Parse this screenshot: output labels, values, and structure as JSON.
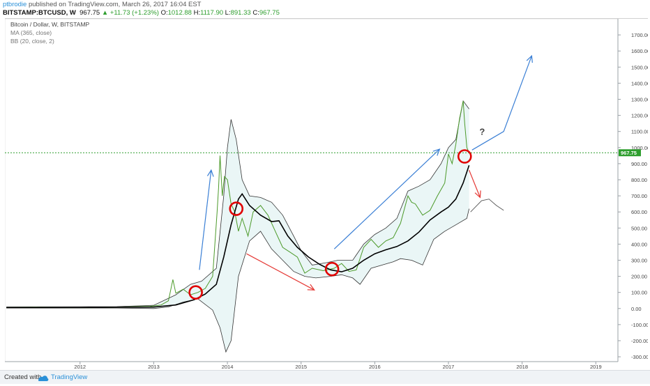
{
  "header": {
    "author": "ptbrodie",
    "published": " published on TradingView.com, March 26, 2017 16:04 EST",
    "symbol": "BITSTAMP:BTCUSD, W",
    "last": "967.75",
    "change": "▲ +11.73 (+1.23%)",
    "o_label": "O:",
    "o_value": "1012.88",
    "h_label": "H:",
    "h_value": "1117.90",
    "l_label": "L:",
    "l_value": "891.33",
    "c_label": "C:",
    "c_value": "967.75"
  },
  "legend": {
    "title": "Bitcoin / Dollar, W, BITSTAMP",
    "ma": "MA (365, close)",
    "bb": "BB (20, close, 2)"
  },
  "footer": {
    "created": "Created with",
    "brand": "TradingView"
  },
  "colors": {
    "price": "#4c9a2a",
    "ma": "#000000",
    "bands": "#333333",
    "band_fill": "#eaf6f6",
    "hline": "#2e9e2e",
    "arrow_up": "#3a7fd5",
    "arrow_down": "#e53935",
    "circle": "#e00000",
    "tag_bg": "#2e9e2e"
  },
  "annotations": {
    "question": "?"
  },
  "chart_data": {
    "type": "line",
    "title": "Bitcoin / Dollar, W, BITSTAMP",
    "x_ticks": [
      "2012",
      "2013",
      "2014",
      "2015",
      "2016",
      "2017",
      "2018",
      "2019"
    ],
    "y_ticks": [
      -300,
      -200,
      -100,
      0,
      100,
      200,
      300,
      400,
      500,
      600,
      700,
      800,
      900,
      1000,
      1100,
      1200,
      1300,
      1400,
      1500,
      1600,
      1700
    ],
    "ylim": [
      -330,
      1800
    ],
    "xlim": [
      2010.98,
      2019.3
    ],
    "current_price": 967.75,
    "current_price_label": "967.75",
    "series": [
      {
        "name": "BTCUSD",
        "values": [
          [
            2011.0,
            6
          ],
          [
            2011.4,
            8
          ],
          [
            2011.8,
            5
          ],
          [
            2012.1,
            5
          ],
          [
            2012.4,
            6
          ],
          [
            2012.7,
            11
          ],
          [
            2012.95,
            13
          ],
          [
            2013.1,
            22
          ],
          [
            2013.2,
            48
          ],
          [
            2013.26,
            180
          ],
          [
            2013.3,
            95
          ],
          [
            2013.4,
            120
          ],
          [
            2013.5,
            85
          ],
          [
            2013.6,
            100
          ],
          [
            2013.7,
            125
          ],
          [
            2013.8,
            200
          ],
          [
            2013.86,
            600
          ],
          [
            2013.88,
            750
          ],
          [
            2013.9,
            950
          ],
          [
            2013.93,
            700
          ],
          [
            2013.96,
            820
          ],
          [
            2014.0,
            800
          ],
          [
            2014.05,
            650
          ],
          [
            2014.1,
            600
          ],
          [
            2014.15,
            480
          ],
          [
            2014.2,
            560
          ],
          [
            2014.28,
            450
          ],
          [
            2014.35,
            600
          ],
          [
            2014.45,
            640
          ],
          [
            2014.55,
            580
          ],
          [
            2014.65,
            480
          ],
          [
            2014.75,
            380
          ],
          [
            2014.85,
            350
          ],
          [
            2014.95,
            320
          ],
          [
            2015.05,
            220
          ],
          [
            2015.15,
            250
          ],
          [
            2015.3,
            235
          ],
          [
            2015.45,
            250
          ],
          [
            2015.55,
            280
          ],
          [
            2015.65,
            230
          ],
          [
            2015.75,
            240
          ],
          [
            2015.85,
            380
          ],
          [
            2015.95,
            430
          ],
          [
            2016.05,
            380
          ],
          [
            2016.15,
            420
          ],
          [
            2016.25,
            440
          ],
          [
            2016.35,
            530
          ],
          [
            2016.45,
            700
          ],
          [
            2016.5,
            660
          ],
          [
            2016.55,
            650
          ],
          [
            2016.65,
            580
          ],
          [
            2016.75,
            610
          ],
          [
            2016.85,
            700
          ],
          [
            2016.95,
            780
          ],
          [
            2017.0,
            960
          ],
          [
            2017.05,
            900
          ],
          [
            2017.1,
            1020
          ],
          [
            2017.15,
            1180
          ],
          [
            2017.2,
            1290
          ],
          [
            2017.22,
            1150
          ],
          [
            2017.25,
            1000
          ],
          [
            2017.28,
            967.75
          ]
        ]
      },
      {
        "name": "MA (365, close)",
        "values": [
          [
            2011.0,
            6
          ],
          [
            2012.0,
            6
          ],
          [
            2013.0,
            9
          ],
          [
            2013.3,
            22
          ],
          [
            2013.55,
            55
          ],
          [
            2013.7,
            90
          ],
          [
            2013.85,
            150
          ],
          [
            2013.95,
            320
          ],
          [
            2014.05,
            520
          ],
          [
            2014.15,
            680
          ],
          [
            2014.2,
            712
          ],
          [
            2014.3,
            640
          ],
          [
            2014.45,
            580
          ],
          [
            2014.6,
            540
          ],
          [
            2014.7,
            545
          ],
          [
            2014.82,
            450
          ],
          [
            2014.95,
            380
          ],
          [
            2015.1,
            320
          ],
          [
            2015.25,
            275
          ],
          [
            2015.4,
            240
          ],
          [
            2015.55,
            228
          ],
          [
            2015.7,
            250
          ],
          [
            2015.85,
            300
          ],
          [
            2016.0,
            340
          ],
          [
            2016.15,
            365
          ],
          [
            2016.3,
            385
          ],
          [
            2016.45,
            420
          ],
          [
            2016.6,
            475
          ],
          [
            2016.75,
            550
          ],
          [
            2016.9,
            600
          ],
          [
            2017.0,
            630
          ],
          [
            2017.1,
            680
          ],
          [
            2017.2,
            780
          ],
          [
            2017.28,
            890
          ]
        ]
      },
      {
        "name": "BB upper",
        "values": [
          [
            2011.0,
            10
          ],
          [
            2012.5,
            12
          ],
          [
            2013.0,
            20
          ],
          [
            2013.3,
            85
          ],
          [
            2013.5,
            150
          ],
          [
            2013.65,
            170
          ],
          [
            2013.85,
            250
          ],
          [
            2013.95,
            700
          ],
          [
            2014.0,
            1000
          ],
          [
            2014.05,
            1175
          ],
          [
            2014.12,
            1050
          ],
          [
            2014.2,
            800
          ],
          [
            2014.3,
            700
          ],
          [
            2014.45,
            690
          ],
          [
            2014.6,
            660
          ],
          [
            2014.75,
            580
          ],
          [
            2014.9,
            450
          ],
          [
            2015.0,
            360
          ],
          [
            2015.15,
            270
          ],
          [
            2015.35,
            285
          ],
          [
            2015.5,
            300
          ],
          [
            2015.7,
            300
          ],
          [
            2015.85,
            400
          ],
          [
            2016.0,
            460
          ],
          [
            2016.15,
            500
          ],
          [
            2016.3,
            560
          ],
          [
            2016.45,
            730
          ],
          [
            2016.6,
            760
          ],
          [
            2016.75,
            800
          ],
          [
            2016.9,
            900
          ],
          [
            2017.0,
            1000
          ],
          [
            2017.1,
            1050
          ],
          [
            2017.2,
            1290
          ],
          [
            2017.28,
            1240
          ]
        ]
      },
      {
        "name": "BB lower",
        "values": [
          [
            2011.0,
            3
          ],
          [
            2012.5,
            3
          ],
          [
            2013.0,
            0
          ],
          [
            2013.2,
            10
          ],
          [
            2013.4,
            40
          ],
          [
            2013.6,
            60
          ],
          [
            2013.8,
            -10
          ],
          [
            2013.9,
            -120
          ],
          [
            2013.98,
            -270
          ],
          [
            2014.05,
            -200
          ],
          [
            2014.15,
            200
          ],
          [
            2014.3,
            420
          ],
          [
            2014.45,
            480
          ],
          [
            2014.6,
            370
          ],
          [
            2014.75,
            300
          ],
          [
            2014.9,
            230
          ],
          [
            2015.05,
            200
          ],
          [
            2015.2,
            190
          ],
          [
            2015.4,
            200
          ],
          [
            2015.55,
            210
          ],
          [
            2015.7,
            190
          ],
          [
            2015.8,
            150
          ],
          [
            2015.95,
            250
          ],
          [
            2016.1,
            270
          ],
          [
            2016.25,
            290
          ],
          [
            2016.35,
            310
          ],
          [
            2016.5,
            300
          ],
          [
            2016.65,
            270
          ],
          [
            2016.8,
            430
          ],
          [
            2016.95,
            480
          ],
          [
            2017.1,
            520
          ],
          [
            2017.25,
            560
          ],
          [
            2017.28,
            620
          ]
        ]
      },
      {
        "name": "projection",
        "values": [
          [
            2017.3,
            600
          ],
          [
            2017.45,
            670
          ],
          [
            2017.55,
            680
          ],
          [
            2017.65,
            640
          ],
          [
            2017.75,
            610
          ]
        ]
      }
    ],
    "arrows": [
      {
        "color": "arrow_up",
        "points": [
          [
            2013.62,
            240
          ],
          [
            2013.78,
            860
          ]
        ]
      },
      {
        "color": "arrow_up",
        "points": [
          [
            2015.45,
            370
          ],
          [
            2016.88,
            990
          ]
        ]
      },
      {
        "color": "arrow_up",
        "points": [
          [
            2017.32,
            985
          ],
          [
            2017.75,
            1100
          ],
          [
            2018.13,
            1570
          ]
        ]
      },
      {
        "color": "arrow_down",
        "points": [
          [
            2014.26,
            340
          ],
          [
            2015.18,
            115
          ]
        ]
      },
      {
        "color": "arrow_down",
        "points": [
          [
            2017.28,
            860
          ],
          [
            2017.43,
            690
          ]
        ]
      }
    ],
    "circles": [
      [
        2013.57,
        100
      ],
      [
        2014.12,
        620
      ],
      [
        2015.42,
        245
      ],
      [
        2017.22,
        945
      ]
    ],
    "question_at": [
      2017.42,
      1080
    ]
  }
}
